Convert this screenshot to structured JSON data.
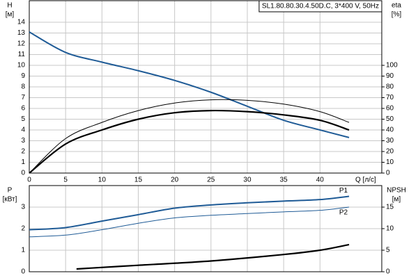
{
  "chart_data": [
    {
      "type": "line",
      "title": "SL1.80.80.30.4.50D.C, 3*400 V, 50Hz",
      "ylabel": [
        "H",
        "[м]"
      ],
      "y2label": [
        "eta",
        "[%]"
      ],
      "xlabel": "Q [л/с]",
      "xlim": [
        0,
        48.5
      ],
      "xticks": [
        0,
        5,
        10,
        15,
        20,
        25,
        30,
        35,
        40
      ],
      "ylim": [
        0,
        16
      ],
      "yticks": [
        0,
        1,
        2,
        3,
        4,
        5,
        6,
        7,
        8,
        9,
        10,
        11,
        12,
        13,
        14
      ],
      "y2lim": [
        0,
        160
      ],
      "y2ticks": [
        0,
        10,
        20,
        30,
        40,
        50,
        60,
        70,
        80,
        90,
        100
      ],
      "grid": true,
      "show_xtick_labels": true,
      "series": [
        {
          "color": "#1f5b96",
          "width": 2,
          "x": [
            0,
            5,
            10,
            15,
            20,
            25,
            30,
            35,
            40,
            44
          ],
          "values": [
            13.1,
            11.2,
            10.3,
            9.5,
            8.6,
            7.5,
            6.2,
            4.9,
            4.0,
            3.3
          ]
        },
        {
          "color": "#000000",
          "width": 1,
          "axis": "y2",
          "x": [
            0,
            5,
            10,
            15,
            20,
            25,
            30,
            35,
            40,
            44
          ],
          "values": [
            0,
            32,
            47,
            58,
            65,
            68,
            67.5,
            64,
            57,
            47
          ]
        },
        {
          "color": "#000000",
          "width": 2.2,
          "axis": "y2",
          "x": [
            0,
            5,
            10,
            15,
            20,
            25,
            30,
            35,
            40,
            44
          ],
          "values": [
            0,
            27,
            40,
            50,
            56,
            58,
            57,
            54,
            49,
            40
          ]
        }
      ]
    },
    {
      "type": "line",
      "ylabel": [
        "P",
        "[кВт]"
      ],
      "y2label": [
        "NPSH",
        "[м]"
      ],
      "xlim": [
        0,
        48.5
      ],
      "xticks": [
        0,
        5,
        10,
        15,
        20,
        25,
        30,
        35,
        40
      ],
      "ylim": [
        0,
        4
      ],
      "yticks": [
        0,
        1,
        2,
        3
      ],
      "y2lim": [
        0,
        20
      ],
      "y2ticks": [
        0,
        5,
        10,
        15
      ],
      "grid": true,
      "show_xtick_labels": false,
      "series": [
        {
          "name": "P1",
          "color": "#1f5b96",
          "width": 2,
          "x": [
            0,
            5,
            10,
            15,
            20,
            25,
            30,
            35,
            40,
            44
          ],
          "values": [
            1.95,
            2.05,
            2.35,
            2.65,
            2.95,
            3.1,
            3.2,
            3.28,
            3.35,
            3.5
          ]
        },
        {
          "name": "P2",
          "color": "#1f5b96",
          "width": 1,
          "x": [
            0,
            5,
            10,
            15,
            20,
            25,
            30,
            35,
            40,
            44
          ],
          "values": [
            1.62,
            1.7,
            1.95,
            2.25,
            2.5,
            2.62,
            2.7,
            2.78,
            2.85,
            3.0
          ]
        },
        {
          "color": "#000000",
          "width": 2.2,
          "axis": "y2",
          "x": [
            6.5,
            15,
            25,
            35,
            40,
            44
          ],
          "values": [
            0.65,
            1.5,
            2.5,
            4.0,
            5.0,
            6.3
          ]
        }
      ]
    }
  ]
}
